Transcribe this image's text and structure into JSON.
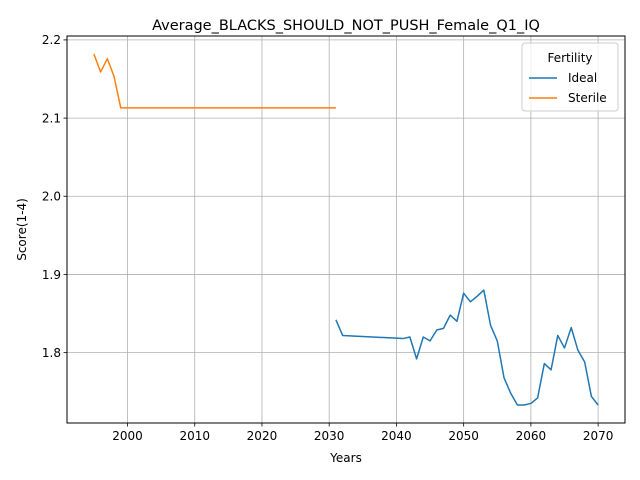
{
  "chart_data": {
    "type": "line",
    "title": "Average_BLACKS_SHOULD_NOT_PUSH_Female_Q1_IQ",
    "xlabel": "Years",
    "ylabel": "Score(1-4)",
    "xlim": [
      1991,
      2074
    ],
    "ylim": [
      1.71,
      2.205
    ],
    "xticks": [
      2000,
      2010,
      2020,
      2030,
      2040,
      2050,
      2060,
      2070
    ],
    "yticks": [
      1.8,
      1.9,
      2.0,
      2.1,
      2.2
    ],
    "xtick_labels": [
      "2000",
      "2010",
      "2020",
      "2030",
      "2040",
      "2050",
      "2060",
      "2070"
    ],
    "ytick_labels": [
      "1.8",
      "1.9",
      "2.0",
      "2.1",
      "2.2"
    ],
    "grid": true,
    "legend": {
      "title": "Fertility",
      "placement": "top-right"
    },
    "series": [
      {
        "name": "Ideal",
        "color": "#1f77b4",
        "x": [
          2031,
          2032,
          2041,
          2042,
          2043,
          2044,
          2045,
          2046,
          2047,
          2048,
          2049,
          2050,
          2051,
          2052,
          2053,
          2054,
          2055,
          2056,
          2057,
          2058,
          2059,
          2060,
          2061,
          2062,
          2063,
          2064,
          2065,
          2066,
          2067,
          2068,
          2069,
          2070
        ],
        "y": [
          1.842,
          1.822,
          1.818,
          1.82,
          1.792,
          1.82,
          1.815,
          1.829,
          1.831,
          1.848,
          1.84,
          1.876,
          1.865,
          1.872,
          1.88,
          1.835,
          1.815,
          1.768,
          1.748,
          1.733,
          1.733,
          1.735,
          1.742,
          1.786,
          1.778,
          1.822,
          1.806,
          1.832,
          1.803,
          1.788,
          1.744,
          1.733
        ]
      },
      {
        "name": "Sterile",
        "color": "#ff7f0e",
        "x": [
          1995,
          1996,
          1997,
          1998,
          1999,
          2000,
          2031
        ],
        "y": [
          2.182,
          2.159,
          2.176,
          2.153,
          2.113,
          2.113,
          2.113
        ]
      }
    ]
  }
}
